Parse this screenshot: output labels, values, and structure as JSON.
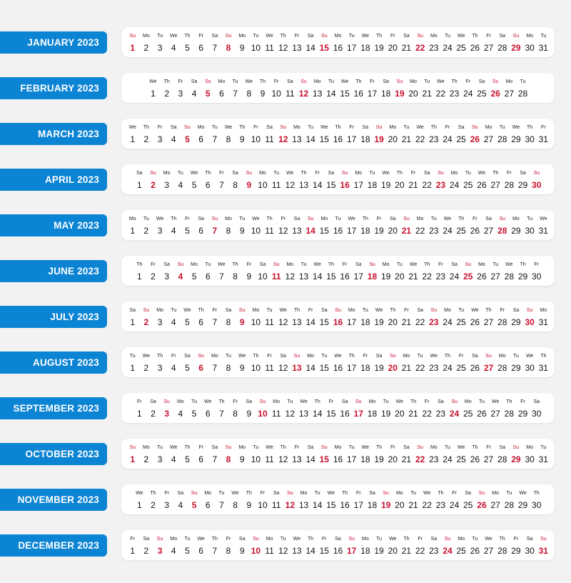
{
  "weekday_labels": [
    "Su",
    "Mo",
    "Tu",
    "We",
    "Th",
    "Fr",
    "Sa"
  ],
  "colors": {
    "label_bg": "#0b84d4",
    "sunday": "#c8102e",
    "background": "#f2f2f2",
    "card": "#ffffff"
  },
  "months": [
    {
      "label": "JANUARY 2023",
      "days": 31,
      "first_weekday": 0
    },
    {
      "label": "FEBRUARY 2023",
      "days": 28,
      "first_weekday": 3
    },
    {
      "label": "MARCH 2023",
      "days": 31,
      "first_weekday": 3
    },
    {
      "label": "APRIL 2023",
      "days": 30,
      "first_weekday": 6
    },
    {
      "label": "MAY 2023",
      "days": 31,
      "first_weekday": 1
    },
    {
      "label": "JUNE 2023",
      "days": 30,
      "first_weekday": 4
    },
    {
      "label": "JULY 2023",
      "days": 31,
      "first_weekday": 6
    },
    {
      "label": "AUGUST 2023",
      "days": 31,
      "first_weekday": 2
    },
    {
      "label": "SEPTEMBER 2023",
      "days": 30,
      "first_weekday": 5
    },
    {
      "label": "OCTOBER 2023",
      "days": 31,
      "first_weekday": 0
    },
    {
      "label": "NOVEMBER 2023",
      "days": 30,
      "first_weekday": 3
    },
    {
      "label": "DECEMBER 2023",
      "days": 31,
      "first_weekday": 5
    }
  ]
}
